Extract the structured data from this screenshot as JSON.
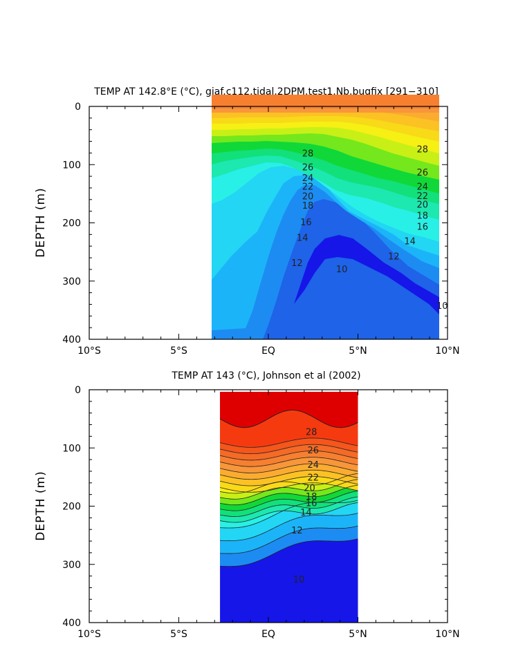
{
  "colors": {
    "t8": "#1616e8",
    "t10": "#1e63e8",
    "t11": "#1c8cf2",
    "t12": "#1cb4f8",
    "t13": "#22d6f4",
    "t14": "#28f0e6",
    "t15": "#1ce8b0",
    "t16": "#12e07a",
    "t17": "#10d838",
    "t18": "#74e81c",
    "t19": "#c8f016",
    "t20": "#f6f014",
    "t21": "#f8da18",
    "t22": "#fcc224",
    "t23": "#fbac30",
    "t24": "#f8963a",
    "t25": "#f68030",
    "t26": "#f46a26",
    "t27": "#f4561c",
    "t28": "#f63a10",
    "t29": "#fa1408",
    "t30": "#de0000"
  },
  "chart_data": [
    {
      "type": "heatmap",
      "title": "TEMP AT 142.8°E (°C), giaf.c112.tidal.2DPM.test1.Nb.bugfix [291−310]",
      "xlabel": "",
      "ylabel": "DEPTH (m)",
      "x_ticks": [
        "10°S",
        "5°S",
        "EQ",
        "5°N",
        "10°N"
      ],
      "y_ticks": [
        "0",
        "100",
        "200",
        "300",
        "400"
      ],
      "xlim": [
        -10,
        10
      ],
      "ylim": [
        400,
        0
      ],
      "data_lat_range": [
        -3,
        10
      ],
      "colorscale": "blue (cold) to red (warm)",
      "contour_labels": [
        {
          "text": "28",
          "lat": 2.2,
          "depth": 80
        },
        {
          "text": "28",
          "lat": 8.6,
          "depth": 73
        },
        {
          "text": "26",
          "lat": 2.2,
          "depth": 104
        },
        {
          "text": "26",
          "lat": 8.6,
          "depth": 113
        },
        {
          "text": "24",
          "lat": 2.2,
          "depth": 122
        },
        {
          "text": "24",
          "lat": 8.6,
          "depth": 137
        },
        {
          "text": "22",
          "lat": 2.2,
          "depth": 137
        },
        {
          "text": "22",
          "lat": 8.6,
          "depth": 153
        },
        {
          "text": "20",
          "lat": 2.2,
          "depth": 154
        },
        {
          "text": "20",
          "lat": 8.6,
          "depth": 168
        },
        {
          "text": "18",
          "lat": 2.2,
          "depth": 170
        },
        {
          "text": "18",
          "lat": 8.6,
          "depth": 187
        },
        {
          "text": "16",
          "lat": 2.1,
          "depth": 198
        },
        {
          "text": "16",
          "lat": 8.6,
          "depth": 206
        },
        {
          "text": "14",
          "lat": 1.9,
          "depth": 225
        },
        {
          "text": "14",
          "lat": 7.9,
          "depth": 231
        },
        {
          "text": "12",
          "lat": 1.6,
          "depth": 268
        },
        {
          "text": "12",
          "lat": 7.0,
          "depth": 257
        },
        {
          "text": "10",
          "lat": 4.1,
          "depth": 279
        },
        {
          "text": "10",
          "lat": 9.7,
          "depth": 342
        }
      ]
    },
    {
      "type": "heatmap",
      "title": "TEMP AT 143 (°C), Johnson et al (2002)",
      "xlabel": "",
      "ylabel": "DEPTH (m)",
      "x_ticks": [
        "10°S",
        "5°S",
        "EQ",
        "5°N",
        "10°N"
      ],
      "y_ticks": [
        "0",
        "100",
        "200",
        "300",
        "400"
      ],
      "xlim": [
        -10,
        10
      ],
      "ylim": [
        400,
        0
      ],
      "data_lat_range": [
        -2.7,
        5
      ],
      "colorscale": "blue (cold) to red (warm)",
      "contour_labels": [
        {
          "text": "28",
          "lat": 2.4,
          "depth": 72
        },
        {
          "text": "26",
          "lat": 2.5,
          "depth": 103
        },
        {
          "text": "24",
          "lat": 2.5,
          "depth": 128
        },
        {
          "text": "22",
          "lat": 2.5,
          "depth": 150
        },
        {
          "text": "20",
          "lat": 2.3,
          "depth": 168
        },
        {
          "text": "18",
          "lat": 2.4,
          "depth": 183
        },
        {
          "text": "16",
          "lat": 2.4,
          "depth": 194
        },
        {
          "text": "14",
          "lat": 2.1,
          "depth": 210
        },
        {
          "text": "12",
          "lat": 1.6,
          "depth": 241
        },
        {
          "text": "10",
          "lat": 1.7,
          "depth": 325
        }
      ]
    }
  ]
}
